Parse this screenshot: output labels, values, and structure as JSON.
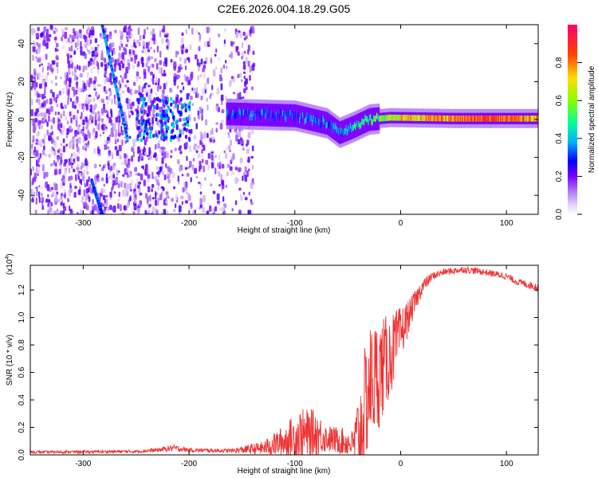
{
  "page_title": "C2E6.2026.004.18.29.G05",
  "chart_data": [
    {
      "type": "heatmap",
      "name": "spectrogram",
      "xlabel": "Height of straight line (km)",
      "ylabel": "Frequency (Hz)",
      "xlim": [
        -350,
        130
      ],
      "ylim": [
        -50,
        50
      ],
      "x_ticks": [
        -300,
        -200,
        -100,
        0,
        100
      ],
      "x_tick_labels": [
        "-300",
        "-200",
        "-100",
        "0",
        "100"
      ],
      "y_ticks": [
        -40,
        -20,
        0,
        20,
        40
      ],
      "y_tick_labels": [
        "-40",
        "-20",
        "0",
        "20",
        "40"
      ],
      "colorbar": {
        "label": "Normalized spectral amplitude",
        "range": [
          0,
          1
        ],
        "ticks": [
          0.0,
          0.2,
          0.4,
          0.6,
          0.8
        ],
        "tick_labels": [
          "0.0",
          "0.2",
          "0.4",
          "0.6",
          "0.8"
        ],
        "colors": [
          "#ffffff",
          "#c4a8f0",
          "#7a00ff",
          "#0000ff",
          "#00ccff",
          "#00ff66",
          "#aaff00",
          "#ffcc00",
          "#ff2200",
          "#ff0066"
        ]
      },
      "features": [
        {
          "description": "noise region",
          "x_range": [
            -350,
            -140
          ],
          "typical_amplitude": 0.15
        },
        {
          "description": "slanted streak",
          "x_start": -282,
          "x_end": -258,
          "freq_start": 50,
          "freq_end": -10,
          "amplitude": 0.35
        },
        {
          "description": "lower streak",
          "x_start": -292,
          "x_end": -282,
          "freq_start": -32,
          "freq_end": -50,
          "amplitude": 0.3
        },
        {
          "description": "blob",
          "x_range": [
            -250,
            -200
          ],
          "freq_range": [
            -10,
            12
          ],
          "amplitude": 0.3
        },
        {
          "description": "signal band",
          "x_range": [
            -165,
            130
          ],
          "center_freq": [
            [
              -165,
              3
            ],
            [
              -100,
              2
            ],
            [
              -70,
              -2
            ],
            [
              -58,
              -7
            ],
            [
              -45,
              -4
            ],
            [
              -30,
              0
            ],
            [
              -10,
              1
            ],
            [
              50,
              0.5
            ],
            [
              130,
              0.5
            ]
          ],
          "amplitude": [
            [
              -165,
              0.3
            ],
            [
              -60,
              0.35
            ],
            [
              -20,
              0.55
            ],
            [
              0,
              0.7
            ],
            [
              80,
              0.85
            ],
            [
              130,
              0.75
            ]
          ]
        }
      ]
    },
    {
      "type": "line",
      "name": "snr",
      "xlabel": "Height of straight line (km)",
      "ylabel": "SNR (10 * v/v)",
      "multiplier_label": "(x10",
      "multiplier_exponent": "4",
      "line_color": "#ee3333",
      "xlim": [
        -350,
        130
      ],
      "ylim": [
        0,
        1.38
      ],
      "x_ticks": [
        -300,
        -200,
        -100,
        0,
        100
      ],
      "x_tick_labels": [
        "-300",
        "-200",
        "-100",
        "0",
        "100"
      ],
      "y_ticks": [
        0.0,
        0.2,
        0.4,
        0.6,
        0.8,
        1.0,
        1.2
      ],
      "y_tick_labels": [
        "0.0",
        "0.2",
        "0.4",
        "0.6",
        "0.8",
        "1.0",
        "1.2"
      ],
      "envelope": {
        "x": [
          -350,
          -250,
          -230,
          -215,
          -200,
          -160,
          -130,
          -110,
          -95,
          -80,
          -70,
          -55,
          -45,
          -38,
          -30,
          -20,
          -10,
          0,
          10,
          20,
          30,
          40,
          60,
          80,
          100,
          110,
          130
        ],
        "base": [
          0.02,
          0.025,
          0.035,
          0.05,
          0.035,
          0.03,
          0.05,
          0.1,
          0.14,
          0.16,
          0.12,
          0.1,
          0.08,
          0.15,
          0.5,
          0.6,
          0.72,
          0.88,
          1.05,
          1.22,
          1.3,
          1.33,
          1.35,
          1.33,
          1.3,
          1.26,
          1.22
        ],
        "noise": [
          0.01,
          0.012,
          0.015,
          0.025,
          0.015,
          0.015,
          0.05,
          0.12,
          0.2,
          0.17,
          0.1,
          0.1,
          0.1,
          0.45,
          0.45,
          0.4,
          0.3,
          0.2,
          0.1,
          0.06,
          0.03,
          0.025,
          0.025,
          0.025,
          0.025,
          0.025,
          0.03
        ]
      }
    }
  ]
}
